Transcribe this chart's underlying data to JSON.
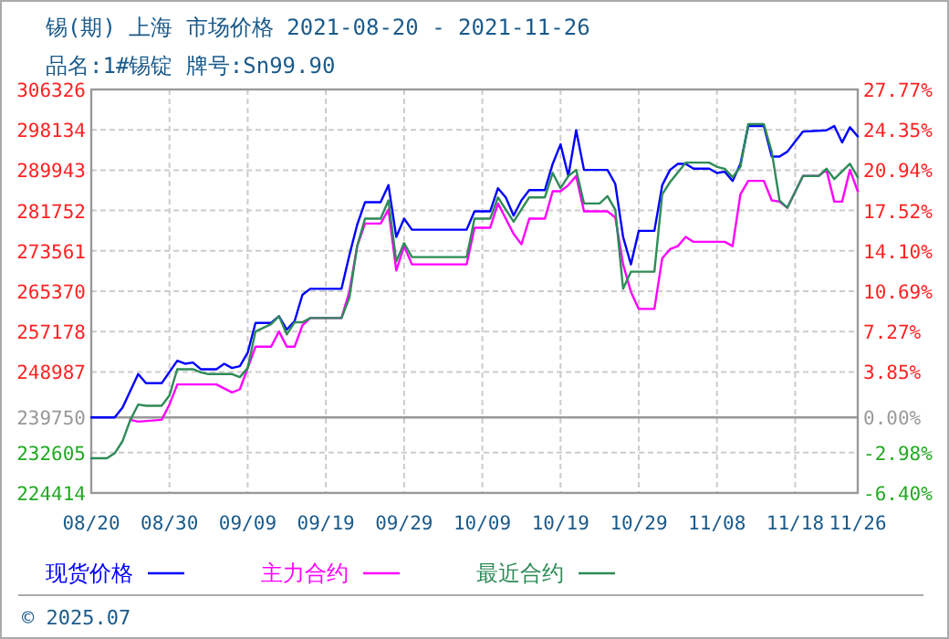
{
  "chart_data": {
    "type": "line",
    "title": "锡(期) 上海 市场价格 2021-08-20 - 2021-11-26",
    "subtitle": "品名:1#锡锭 牌号:Sn99.90",
    "xlim": [
      "2021-08-20",
      "2021-11-26"
    ],
    "xticks": [
      {
        "value": "2021-08-20",
        "label": "08/20"
      },
      {
        "value": "2021-08-30",
        "label": "08/30"
      },
      {
        "value": "2021-09-09",
        "label": "09/09"
      },
      {
        "value": "2021-09-19",
        "label": "09/19"
      },
      {
        "value": "2021-09-29",
        "label": "09/29"
      },
      {
        "value": "2021-10-09",
        "label": "10/09"
      },
      {
        "value": "2021-10-19",
        "label": "10/19"
      },
      {
        "value": "2021-10-29",
        "label": "10/29"
      },
      {
        "value": "2021-11-08",
        "label": "11/08"
      },
      {
        "value": "2021-11-18",
        "label": "11/18"
      },
      {
        "value": "2021-11-26",
        "label": "11/26"
      }
    ],
    "ylim": [
      224414,
      306326
    ],
    "yticks": [
      224414,
      232605,
      239750,
      248987,
      257178,
      265370,
      273561,
      281752,
      289943,
      298134,
      306326
    ],
    "y2lim": [
      -6.4,
      27.77
    ],
    "y2ticks": [
      {
        "value": -6.4,
        "label": "-6.40%"
      },
      {
        "value": -2.98,
        "label": "-2.98%"
      },
      {
        "value": 0,
        "label": "0.00%"
      },
      {
        "value": 3.85,
        "label": "3.85%"
      },
      {
        "value": 7.27,
        "label": "7.27%"
      },
      {
        "value": 10.69,
        "label": "10.69%"
      },
      {
        "value": 14.1,
        "label": "14.10%"
      },
      {
        "value": 17.52,
        "label": "17.52%"
      },
      {
        "value": 20.94,
        "label": "20.94%"
      },
      {
        "value": 24.35,
        "label": "24.35%"
      },
      {
        "value": 27.77,
        "label": "27.77%"
      }
    ],
    "ref_lines": [
      {
        "axis": "y",
        "value": 239750,
        "color": "#999999",
        "line_style": "solid"
      }
    ],
    "grid": true,
    "legend": "bottom",
    "marker": "none",
    "line_style": "solid",
    "annotations": [
      "© 2025.07"
    ],
    "series": [
      {
        "name": "现货价格",
        "color": "#0000ff",
        "x": [
          "2021-08-20",
          "2021-08-23",
          "2021-08-24",
          "2021-08-26",
          "2021-08-27",
          "2021-08-29",
          "2021-08-31",
          "2021-09-01",
          "2021-09-02",
          "2021-09-03",
          "2021-09-05",
          "2021-09-06",
          "2021-09-07",
          "2021-09-08",
          "2021-09-09",
          "2021-09-10",
          "2021-09-12",
          "2021-09-13",
          "2021-09-14",
          "2021-09-15",
          "2021-09-16",
          "2021-09-17",
          "2021-09-21",
          "2021-09-22",
          "2021-09-23",
          "2021-09-24",
          "2021-09-26",
          "2021-09-27",
          "2021-09-28",
          "2021-09-29",
          "2021-09-30",
          "2021-10-07",
          "2021-10-08",
          "2021-10-10",
          "2021-10-11",
          "2021-10-12",
          "2021-10-13",
          "2021-10-14",
          "2021-10-15",
          "2021-10-17",
          "2021-10-18",
          "2021-10-19",
          "2021-10-20",
          "2021-10-21",
          "2021-10-22",
          "2021-10-25",
          "2021-10-26",
          "2021-10-27",
          "2021-10-28",
          "2021-10-29",
          "2021-10-31",
          "2021-11-01",
          "2021-11-02",
          "2021-11-03",
          "2021-11-04",
          "2021-11-05",
          "2021-11-07",
          "2021-11-08",
          "2021-11-09",
          "2021-11-10",
          "2021-11-11",
          "2021-11-12",
          "2021-11-14",
          "2021-11-15",
          "2021-11-16",
          "2021-11-17",
          "2021-11-19",
          "2021-11-22",
          "2021-11-23",
          "2021-11-24",
          "2021-11-25",
          "2021-11-26"
        ],
        "values": [
          239750,
          239750,
          241736,
          248541,
          246685,
          246685,
          251263,
          250645,
          250892,
          249531,
          249531,
          250645,
          249779,
          250150,
          252872,
          258935,
          258935,
          260296,
          257574,
          259306,
          264626,
          265864,
          265864,
          272669,
          278855,
          283433,
          283433,
          286898,
          276381,
          280093,
          277865,
          277865,
          281577,
          281577,
          286279,
          284423,
          280711,
          283804,
          285908,
          285908,
          291228,
          295188,
          288754,
          298033,
          289991,
          289991,
          287145,
          276381,
          270813,
          277618,
          277618,
          286898,
          289991,
          291228,
          291228,
          290238,
          290238,
          289372,
          289620,
          287764,
          291228,
          298899,
          298899,
          292713,
          292713,
          293703,
          297786,
          298033,
          298899,
          295559,
          298652,
          296796
        ]
      },
      {
        "name": "主力合约",
        "color": "#ff00ff",
        "x": [
          "2021-08-25",
          "2021-08-26",
          "2021-08-29",
          "2021-08-30",
          "2021-08-31",
          "2021-09-05",
          "2021-09-07",
          "2021-09-08",
          "2021-09-10",
          "2021-09-12",
          "2021-09-13",
          "2021-09-14",
          "2021-09-15",
          "2021-09-16",
          "2021-09-17",
          "2021-09-21",
          "2021-09-22",
          "2021-09-23",
          "2021-09-24",
          "2021-09-26",
          "2021-09-27",
          "2021-09-28",
          "2021-09-29",
          "2021-09-30",
          "2021-10-07",
          "2021-10-08",
          "2021-10-10",
          "2021-10-11",
          "2021-10-13",
          "2021-10-14",
          "2021-10-15",
          "2021-10-17",
          "2021-10-18",
          "2021-10-19",
          "2021-10-20",
          "2021-10-21",
          "2021-10-22",
          "2021-10-25",
          "2021-10-26",
          "2021-10-27",
          "2021-10-28",
          "2021-10-29",
          "2021-10-31",
          "2021-11-01",
          "2021-11-02",
          "2021-11-03",
          "2021-11-04",
          "2021-11-05",
          "2021-11-09",
          "2021-11-10",
          "2021-11-11",
          "2021-11-12",
          "2021-11-14",
          "2021-11-15",
          "2021-11-16",
          "2021-11-17",
          "2021-11-19",
          "2021-11-21",
          "2021-11-22",
          "2021-11-23",
          "2021-11-24",
          "2021-11-25",
          "2021-11-26"
        ],
        "values": [
          239262,
          238890,
          239262,
          242355,
          246438,
          246438,
          244829,
          245448,
          254109,
          254109,
          257202,
          254109,
          254109,
          258440,
          259925,
          259925,
          265245,
          274525,
          279103,
          279103,
          281948,
          269575,
          274525,
          270813,
          270813,
          278237,
          278237,
          283186,
          276999,
          274896,
          280093,
          280093,
          285660,
          285660,
          286898,
          288754,
          281577,
          281577,
          280340,
          270813,
          265245,
          261780,
          261780,
          272050,
          273906,
          274525,
          276381,
          275391,
          275391,
          274525,
          285042,
          287764,
          287764,
          283804,
          283557,
          282320,
          288754,
          288754,
          289991,
          283557,
          283557,
          289991,
          285660
        ]
      },
      {
        "name": "最近合约",
        "color": "#2e8b57",
        "x": [
          "2021-08-20",
          "2021-08-22",
          "2021-08-23",
          "2021-08-24",
          "2021-08-25",
          "2021-08-26",
          "2021-08-27",
          "2021-08-29",
          "2021-08-30",
          "2021-08-31",
          "2021-09-02",
          "2021-09-03",
          "2021-09-04",
          "2021-09-07",
          "2021-09-08",
          "2021-09-09",
          "2021-09-10",
          "2021-09-12",
          "2021-09-13",
          "2021-09-14",
          "2021-09-15",
          "2021-09-16",
          "2021-09-17",
          "2021-09-21",
          "2021-09-22",
          "2021-09-23",
          "2021-09-24",
          "2021-09-26",
          "2021-09-27",
          "2021-09-28",
          "2021-09-29",
          "2021-09-30",
          "2021-10-07",
          "2021-10-08",
          "2021-10-10",
          "2021-10-11",
          "2021-10-13",
          "2021-10-15",
          "2021-10-17",
          "2021-10-18",
          "2021-10-19",
          "2021-10-20",
          "2021-10-21",
          "2021-10-22",
          "2021-10-24",
          "2021-10-25",
          "2021-10-26",
          "2021-10-27",
          "2021-10-28",
          "2021-10-30",
          "2021-10-31",
          "2021-11-01",
          "2021-11-02",
          "2021-11-04",
          "2021-11-07",
          "2021-11-08",
          "2021-11-09",
          "2021-11-10",
          "2021-11-11",
          "2021-11-12",
          "2021-11-14",
          "2021-11-15",
          "2021-11-16",
          "2021-11-17",
          "2021-11-19",
          "2021-11-21",
          "2021-11-22",
          "2021-11-23",
          "2021-11-25",
          "2021-11-26"
        ],
        "values": [
          231467,
          231467,
          232456,
          234931,
          239262,
          242355,
          242107,
          242107,
          244211,
          249531,
          249531,
          248913,
          248541,
          248541,
          247923,
          249779,
          257202,
          258687,
          260296,
          256584,
          259058,
          259058,
          259925,
          259925,
          264008,
          274525,
          280093,
          280093,
          283804,
          271431,
          275143,
          272298,
          272298,
          280093,
          280093,
          284423,
          279474,
          284423,
          284423,
          289372,
          286279,
          288754,
          289991,
          283186,
          283186,
          284671,
          281948,
          265864,
          269328,
          269328,
          269328,
          285042,
          287516,
          291476,
          291476,
          290610,
          290238,
          288506,
          290610,
          299271,
          299271,
          293703,
          283804,
          282320,
          288754,
          288754,
          290238,
          288135,
          291228,
          288506
        ]
      }
    ]
  }
}
